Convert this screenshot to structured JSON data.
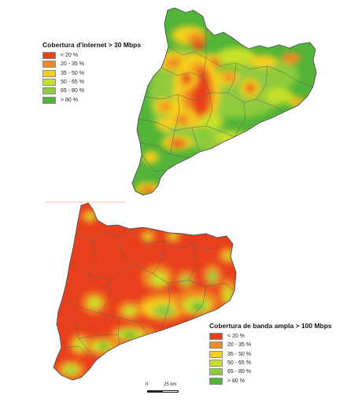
{
  "maps": [
    {
      "id": "internet_30",
      "legend_title": "Cobertura d'internet > 30 Mbps",
      "dominant_class": "> 80 %"
    },
    {
      "id": "broadband_100",
      "legend_title": "Cobertura de banda ampla > 100 Mbps",
      "dominant_class": "< 20 %"
    }
  ],
  "classes": [
    {
      "label": "< 20 %",
      "color": "#e8401c"
    },
    {
      "label": "20 - 35 %",
      "color": "#f08a22"
    },
    {
      "label": "35 - 50 %",
      "color": "#f5cf1c"
    },
    {
      "label": "50 - 65 %",
      "color": "#c8e02c"
    },
    {
      "label": "65 - 80 %",
      "color": "#8fcb3c"
    },
    {
      "label": "> 80 %",
      "color": "#52b438"
    }
  ],
  "scale_bar": {
    "zero_label": "0",
    "end_label": "25 km"
  },
  "border_color": "#5f5f5f"
}
